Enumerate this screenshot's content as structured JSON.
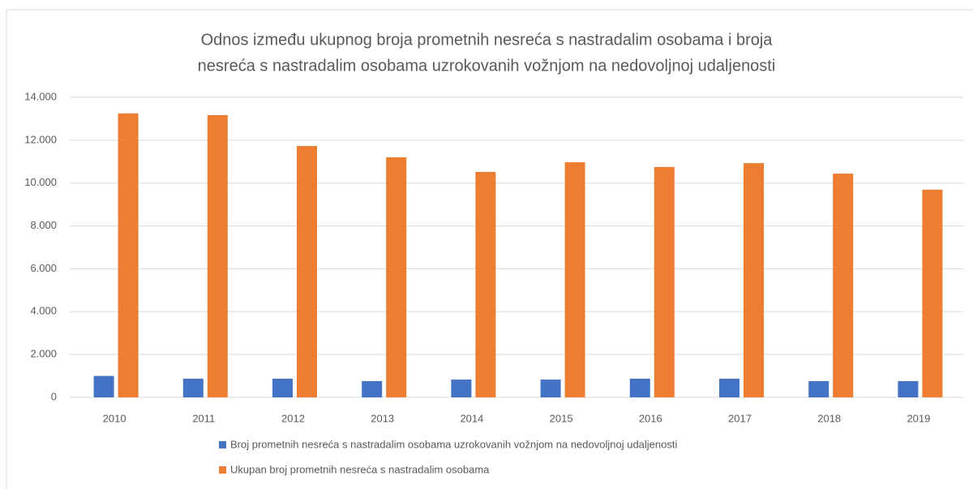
{
  "chart_data": {
    "type": "bar",
    "title": [
      "Odnos između ukupnog broja prometnih nesreća s nastradalim osobama i broja",
      "nesreća s nastradalim osobama uzrokovanih vožnjom na nedovoljnoj udaljenosti"
    ],
    "categories": [
      "2010",
      "2011",
      "2012",
      "2013",
      "2014",
      "2015",
      "2016",
      "2017",
      "2018",
      "2019"
    ],
    "series": [
      {
        "name": "Broj prometnih nesreća s nastradalim osobama uzrokovanih vožnjom na nedovoljnoj udaljenosti",
        "color": "#4472c4",
        "values": [
          1000,
          870,
          870,
          760,
          830,
          830,
          870,
          870,
          760,
          760
        ]
      },
      {
        "name": "Ukupan broj prometnih nesreća s nastradalim osobama",
        "color": "#ed7d31",
        "values": [
          13250,
          13170,
          11730,
          11200,
          10520,
          10970,
          10750,
          10930,
          10440,
          9690
        ]
      }
    ],
    "ylim": [
      0,
      14000
    ],
    "yticks": [
      0,
      {
        "value": 2000,
        "label": "2.000"
      },
      {
        "value": 4000,
        "label": "4.000"
      },
      {
        "value": 6000,
        "label": "6.000"
      },
      {
        "value": 8000,
        "label": "8.000"
      },
      {
        "value": 10000,
        "label": "10.000"
      },
      {
        "value": 12000,
        "label": "12.000"
      },
      {
        "value": 14000,
        "label": "14.000"
      }
    ],
    "grid": true,
    "legend": "bottom"
  }
}
